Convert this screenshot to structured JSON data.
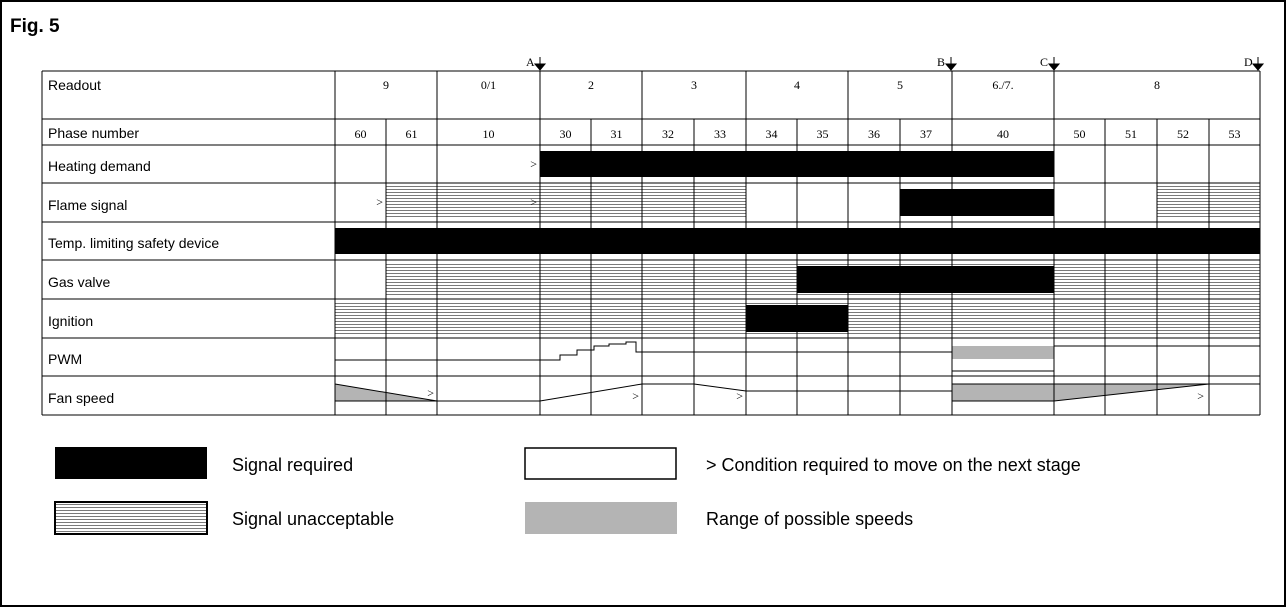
{
  "figure_label": "Fig. 5",
  "markers": [
    "A",
    "B",
    "C",
    "D"
  ],
  "readout": {
    "label": "Readout",
    "groups": [
      "9",
      "0/1",
      "2",
      "3",
      "4",
      "5",
      "6./7.",
      "8"
    ]
  },
  "phase": {
    "label": "Phase number",
    "numbers": [
      "60",
      "61",
      "10",
      "30",
      "31",
      "32",
      "33",
      "34",
      "35",
      "36",
      "37",
      "40",
      "50",
      "51",
      "52",
      "53"
    ]
  },
  "condition_mark": ">",
  "rows": [
    {
      "label": "Heating demand"
    },
    {
      "label": "Flame signal"
    },
    {
      "label": "Temp. limiting safety device"
    },
    {
      "label": "Gas valve"
    },
    {
      "label": "Ignition"
    },
    {
      "label": "PWM"
    },
    {
      "label": "Fan speed"
    }
  ],
  "legend": {
    "signal_required": "Signal required",
    "condition_required": "> Condition required to move on the next stage",
    "signal_unacceptable": "Signal unacceptable",
    "range_of_speeds": "Range of possible speeds"
  },
  "colors": {
    "required": "#000000",
    "range": "#b4b4b4",
    "hatch_line": "#7a7a7a"
  }
}
